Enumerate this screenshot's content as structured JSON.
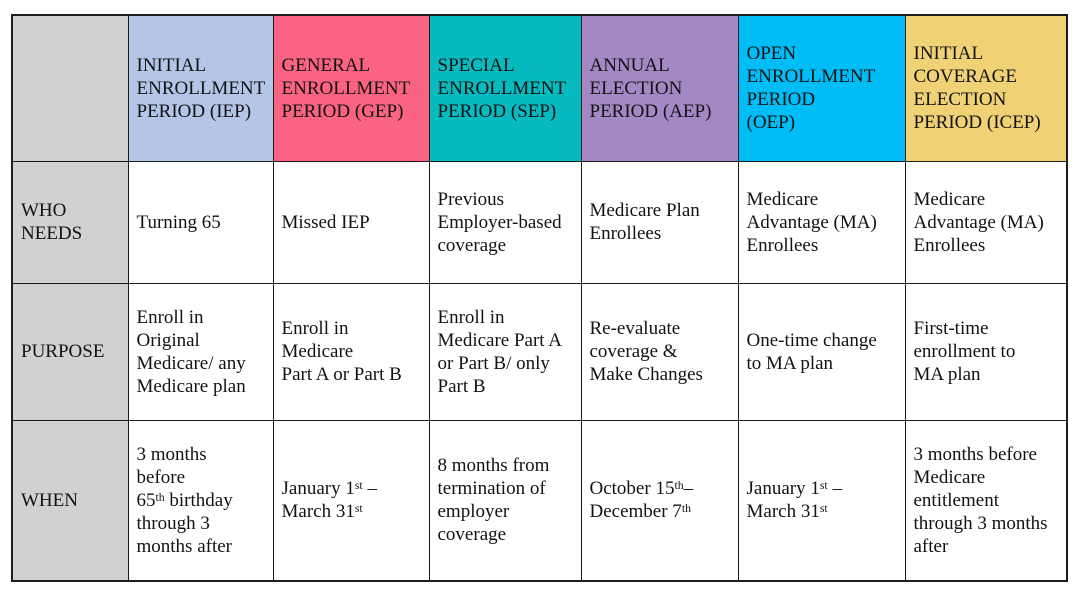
{
  "table": {
    "title_semantic": "Medicare enrollment periods comparison table",
    "corner": "",
    "colors": {
      "border": "#1c1c1c",
      "text": "#121212",
      "page_bg": "#ffffff",
      "row_header_bg": "#d2d0d0",
      "cell_bg": "#ffffff"
    },
    "columns": [
      {
        "id": "iep",
        "label": "INITIAL\nENROLLMENT\nPERIOD (IEP)",
        "color": "#b4c6e7"
      },
      {
        "id": "gep",
        "label": "GENERAL\nENROLLMENT\nPERIOD (GEP)",
        "color": "#fa6382"
      },
      {
        "id": "sep",
        "label": "SPECIAL\nENROLLMENT\nPERIOD (SEP)",
        "color": "#07bac0"
      },
      {
        "id": "aep",
        "label": "ANNUAL\nELECTION\nPERIOD (AEP)",
        "color": "#a388c4"
      },
      {
        "id": "oep",
        "label": "OPEN\nENROLLMENT\nPERIOD\n(OEP)",
        "color": "#00bdf6"
      },
      {
        "id": "icep",
        "label": "INITIAL\nCOVERAGE\nELECTION\nPERIOD (ICEP)",
        "color": "#f0d175"
      }
    ],
    "rows": [
      {
        "header": "WHO\nNEEDS",
        "cells": [
          "Turning 65",
          "Missed IEP",
          "Previous\nEmployer-based\ncoverage",
          "Medicare Plan\nEnrollees",
          "Medicare\nAdvantage (MA)\nEnrollees",
          "Medicare\nAdvantage (MA)\nEnrollees"
        ]
      },
      {
        "header": "PURPOSE",
        "cells": [
          "Enroll in\nOriginal\nMedicare/ any\nMedicare plan",
          "Enroll in\nMedicare\nPart A or Part B",
          "Enroll in\nMedicare Part A\nor Part B/ only\nPart B",
          "Re-evaluate\ncoverage &\nMake Changes",
          "One-time change\nto MA plan",
          "First-time\nenrollment to\nMA plan"
        ]
      },
      {
        "header": "WHEN",
        "cells": [
          "3 months\nbefore\n65^{th} birthday\nthrough 3\nmonths after",
          "January 1^{st} –\nMarch 31^{st}",
          "8 months from\ntermination of\nemployer\ncoverage",
          "October 15^{th}–\nDecember 7^{th}",
          "January 1^{st} –\nMarch 31^{st}",
          "3 months before\nMedicare\nentitlement\nthrough 3 months\nafter"
        ]
      }
    ]
  }
}
